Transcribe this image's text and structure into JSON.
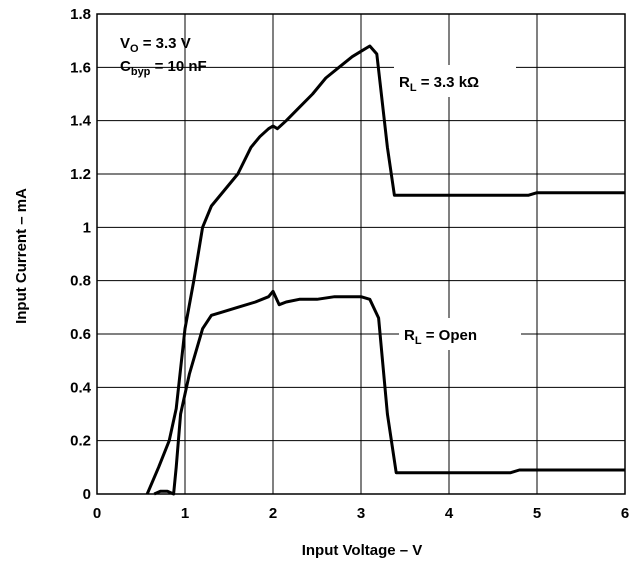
{
  "chart_data": {
    "type": "line",
    "xlabel": "Input Voltage – V",
    "ylabel": "Input Current – mA",
    "xlim": [
      0,
      6
    ],
    "ylim": [
      0,
      1.8
    ],
    "xticks": [
      "0",
      "1",
      "2",
      "3",
      "4",
      "5",
      "6"
    ],
    "yticks": [
      "0",
      "0.2",
      "0.4",
      "0.6",
      "0.8",
      "1",
      "1.2",
      "1.4",
      "1.6",
      "1.8"
    ],
    "grid": true,
    "annotations": {
      "vo": {
        "main": "V",
        "sub": "O",
        "rest": " = 3.3 V"
      },
      "cbyp": {
        "main": "C",
        "sub": "byp",
        "rest": " = 10 nF"
      },
      "rl_load": {
        "main": "R",
        "sub": "L",
        "rest": " = 3.3 kΩ"
      },
      "rl_open": {
        "main": "R",
        "sub": "L",
        "rest": " = Open"
      }
    },
    "series": [
      {
        "x": [
          0.57,
          0.7,
          0.82,
          0.9,
          1.0,
          1.1,
          1.2,
          1.3,
          1.45,
          1.6,
          1.75,
          1.85,
          1.95,
          2.0,
          2.05,
          2.15,
          2.3,
          2.45,
          2.6,
          2.75,
          2.9,
          3.0,
          3.1,
          3.18,
          3.3,
          3.38,
          3.5,
          4.0,
          4.5,
          4.9,
          5.0,
          5.5,
          6.0
        ],
        "y": [
          0.0,
          0.1,
          0.2,
          0.32,
          0.62,
          0.8,
          1.0,
          1.08,
          1.14,
          1.2,
          1.3,
          1.34,
          1.37,
          1.38,
          1.37,
          1.4,
          1.45,
          1.5,
          1.56,
          1.6,
          1.64,
          1.66,
          1.68,
          1.65,
          1.3,
          1.12,
          1.12,
          1.12,
          1.12,
          1.12,
          1.13,
          1.13,
          1.13
        ]
      },
      {
        "x": [
          0.65,
          0.72,
          0.8,
          0.87,
          0.9,
          0.95,
          1.05,
          1.2,
          1.3,
          1.4,
          1.6,
          1.8,
          1.95,
          2.0,
          2.07,
          2.15,
          2.3,
          2.5,
          2.7,
          2.9,
          3.0,
          3.1,
          3.2,
          3.3,
          3.4,
          3.5,
          4.0,
          4.7,
          4.8,
          5.0,
          5.5,
          6.0
        ],
        "y": [
          0.0,
          0.01,
          0.01,
          0.0,
          0.1,
          0.3,
          0.45,
          0.62,
          0.67,
          0.68,
          0.7,
          0.72,
          0.74,
          0.76,
          0.71,
          0.72,
          0.73,
          0.73,
          0.74,
          0.74,
          0.74,
          0.73,
          0.66,
          0.3,
          0.08,
          0.08,
          0.08,
          0.08,
          0.09,
          0.09,
          0.09,
          0.09
        ]
      }
    ]
  }
}
